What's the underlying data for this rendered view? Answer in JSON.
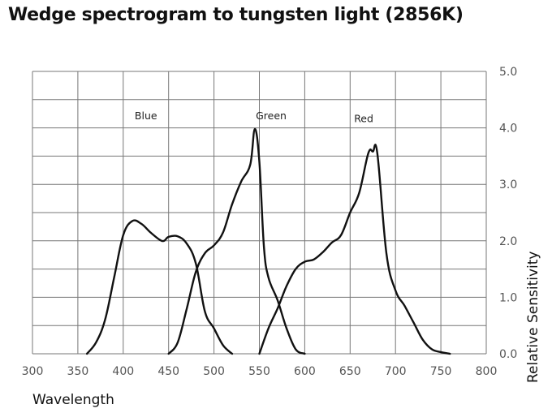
{
  "chart_data": {
    "type": "line",
    "title": "Wedge spectrogram to tungsten light (2856K)",
    "xlabel": "Wavelength",
    "ylabel": "Relative Sensitivity",
    "xlim": [
      300,
      800
    ],
    "ylim": [
      0,
      5
    ],
    "x_ticks": [
      "300",
      "350",
      "400",
      "450",
      "500",
      "550",
      "600",
      "650",
      "700",
      "750",
      "800"
    ],
    "y_ticks": [
      "0.0",
      "1.0",
      "2.0",
      "3.0",
      "4.0",
      "5.0"
    ],
    "y_axis_side": "right",
    "grid": true,
    "series": [
      {
        "name": "Blue",
        "label_at": [
          425,
          4.15
        ],
        "x": [
          360,
          370,
          380,
          390,
          400,
          410,
          420,
          430,
          440,
          445,
          450,
          460,
          470,
          480,
          490,
          500,
          510,
          520
        ],
        "y": [
          0.0,
          0.2,
          0.6,
          1.35,
          2.1,
          2.35,
          2.3,
          2.15,
          2.02,
          2.0,
          2.07,
          2.08,
          1.95,
          1.6,
          0.75,
          0.45,
          0.15,
          0.0
        ]
      },
      {
        "name": "Green",
        "label_at": [
          563,
          4.15
        ],
        "x": [
          450,
          460,
          470,
          480,
          490,
          500,
          510,
          520,
          530,
          540,
          545,
          550,
          555,
          560,
          570,
          580,
          590,
          600
        ],
        "y": [
          0.0,
          0.2,
          0.8,
          1.45,
          1.78,
          1.92,
          2.15,
          2.65,
          3.05,
          3.35,
          3.98,
          3.4,
          1.9,
          1.35,
          0.95,
          0.45,
          0.08,
          0.0
        ]
      },
      {
        "name": "Red",
        "label_at": [
          665,
          4.1
        ],
        "x": [
          550,
          560,
          570,
          580,
          590,
          600,
          610,
          620,
          630,
          640,
          650,
          660,
          670,
          675,
          680,
          690,
          700,
          710,
          720,
          730,
          740,
          750,
          760
        ],
        "y": [
          0.0,
          0.45,
          0.8,
          1.2,
          1.5,
          1.63,
          1.67,
          1.8,
          1.97,
          2.1,
          2.5,
          2.85,
          3.55,
          3.58,
          3.55,
          1.78,
          1.12,
          0.85,
          0.55,
          0.25,
          0.08,
          0.03,
          0.0
        ]
      }
    ]
  }
}
